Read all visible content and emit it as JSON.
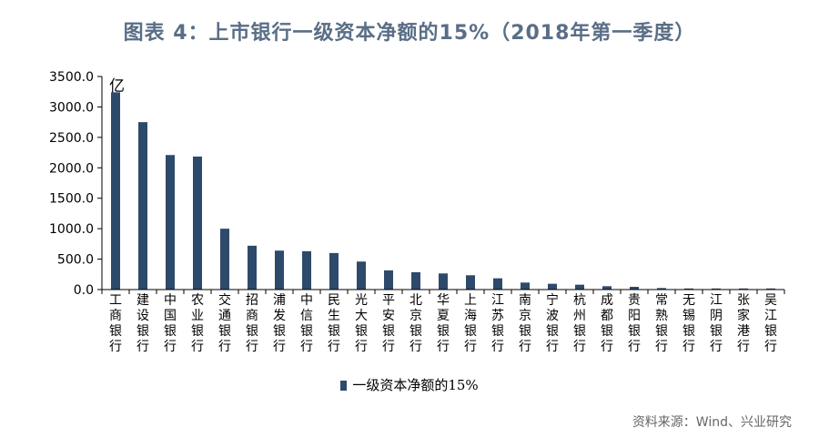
{
  "title": "图表 4：上市银行一级资本净额的15%（2018年第一季度）",
  "unit": "亿",
  "source": "资料来源：Wind、兴业研究",
  "colors": {
    "bar": "#2e4a6b",
    "axis": "#000000",
    "title": "#5a6e86"
  },
  "chart_data": {
    "type": "bar",
    "title": "",
    "xlabel": "",
    "ylabel": "",
    "ylim": [
      0,
      3500
    ],
    "yticks": [
      "0.0",
      "500.0",
      "1000.0",
      "1500.0",
      "2000.0",
      "2500.0",
      "3000.0",
      "3500.0"
    ],
    "grid": false,
    "legend_position": "bottom",
    "categories": [
      "工商银行",
      "建设银行",
      "中国银行",
      "农业银行",
      "交通银行",
      "招商银行",
      "浦发银行",
      "中信银行",
      "民生银行",
      "光大银行",
      "平安银行",
      "北京银行",
      "华夏银行",
      "上海银行",
      "江苏银行",
      "南京银行",
      "宁波银行",
      "杭州银行",
      "成都银行",
      "贵阳银行",
      "常熟银行",
      "无锡银行",
      "江阴银行",
      "张家港行",
      "吴江银行"
    ],
    "series": [
      {
        "name": "一级资本净额的15%",
        "values": [
          3240,
          2750,
          2210,
          2185,
          1000,
          720,
          640,
          630,
          600,
          460,
          315,
          285,
          265,
          235,
          185,
          115,
          95,
          80,
          55,
          45,
          25,
          18,
          18,
          18,
          18
        ]
      }
    ]
  }
}
